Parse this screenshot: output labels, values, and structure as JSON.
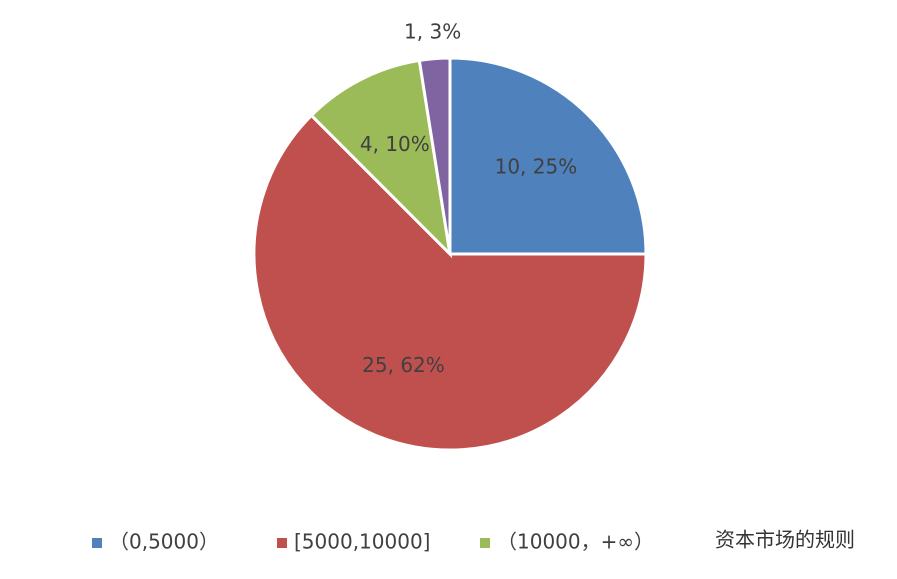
{
  "chart_data": {
    "type": "pie",
    "categories": [
      "（0,5000）",
      "[5000,10000]",
      "（10000，+∞）",
      null
    ],
    "values": [
      10,
      25,
      4,
      1
    ],
    "value_labels": [
      "10, 25%",
      "25, 62%",
      "4, 10%",
      "1, 3%"
    ],
    "colors": [
      "#4f81bd",
      "#c0504d",
      "#9bbb59",
      "#8064a2"
    ],
    "legend": "bottom"
  },
  "watermark": "资本市场的规则"
}
